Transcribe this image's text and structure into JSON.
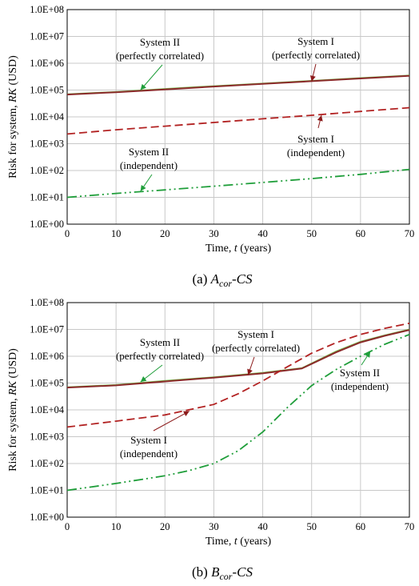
{
  "chart_data": [
    {
      "type": "line",
      "caption": {
        "prefix": "(a) ",
        "var": "A",
        "sub": "cor",
        "suffix": "-CS"
      },
      "xlabel": {
        "text": "Time, ",
        "var": "t",
        "unit": " (years)"
      },
      "ylabel": {
        "text": "Risk for system, ",
        "var": "RK",
        "unit": " (USD)"
      },
      "xlim": [
        0,
        70
      ],
      "ylim": [
        1,
        100000000
      ],
      "yscale": "log",
      "xticks": [
        "0",
        "10",
        "20",
        "30",
        "40",
        "50",
        "60",
        "70"
      ],
      "yticks": [
        "1.0E+00",
        "1.0E+01",
        "1.0E+02",
        "1.0E+03",
        "1.0E+04",
        "1.0E+05",
        "1.0E+06",
        "1.0E+07",
        "1.0E+08"
      ],
      "grid": true,
      "series": [
        {
          "key": "sysII_corr",
          "color": "#7cbf56",
          "style": "solid",
          "x": [
            0,
            10,
            20,
            30,
            40,
            50,
            60,
            70
          ],
          "y": [
            70000,
            85000,
            110000,
            140000,
            175000,
            220000,
            280000,
            350000
          ]
        },
        {
          "key": "sysI_corr",
          "color": "#8b2a2a",
          "style": "solid",
          "x": [
            0,
            10,
            20,
            30,
            40,
            50,
            60,
            70
          ],
          "y": [
            68000,
            83000,
            106000,
            135000,
            170000,
            215000,
            270000,
            340000
          ]
        },
        {
          "key": "sysI_ind",
          "color": "#b22222",
          "style": "dash",
          "x": [
            0,
            10,
            20,
            30,
            40,
            50,
            60,
            70
          ],
          "y": [
            2300,
            3300,
            4500,
            6200,
            8500,
            11500,
            16000,
            22000
          ]
        },
        {
          "key": "sysII_ind",
          "color": "#1f9e3a",
          "style": "dashdotdot",
          "x": [
            0,
            10,
            20,
            30,
            40,
            50,
            60,
            70
          ],
          "y": [
            10,
            14,
            19,
            26,
            36,
            50,
            72,
            110
          ]
        }
      ],
      "annotations": [
        {
          "lines": [
            "System II",
            "(perfectly correlated)"
          ],
          "color": "#1f9e3a",
          "arrow_to": [
            15,
            100000
          ]
        },
        {
          "lines": [
            "System I",
            "(perfectly correlated)"
          ],
          "color": "#8b1a1a",
          "arrow_to": [
            50,
            210000
          ]
        },
        {
          "lines": [
            "System I",
            "(independent)"
          ],
          "color": "#8b1a1a",
          "arrow_to": [
            52,
            11500
          ]
        },
        {
          "lines": [
            "System II",
            "(independent)"
          ],
          "color": "#1f9e3a",
          "arrow_to": [
            15,
            17
          ]
        }
      ]
    },
    {
      "type": "line",
      "caption": {
        "prefix": "(b) ",
        "var": "B",
        "sub": "cor",
        "suffix": "-CS"
      },
      "xlabel": {
        "text": "Time, ",
        "var": "t",
        "unit": " (years)"
      },
      "ylabel": {
        "text": "Risk for system, ",
        "var": "RK",
        "unit": " (USD)"
      },
      "xlim": [
        0,
        70
      ],
      "ylim": [
        1,
        100000000
      ],
      "yscale": "log",
      "xticks": [
        "0",
        "10",
        "20",
        "30",
        "40",
        "50",
        "60",
        "70"
      ],
      "yticks": [
        "1.0E+00",
        "1.0E+01",
        "1.0E+02",
        "1.0E+03",
        "1.0E+04",
        "1.0E+05",
        "1.0E+06",
        "1.0E+07",
        "1.0E+08"
      ],
      "grid": true,
      "series": [
        {
          "key": "sysII_corr",
          "color": "#7cbf56",
          "style": "solid",
          "x": [
            0,
            10,
            20,
            30,
            40,
            48,
            55,
            60,
            65,
            70
          ],
          "y": [
            70000,
            85000,
            120000,
            165000,
            240000,
            360000,
            1500000,
            3500000,
            6000000,
            10000000
          ]
        },
        {
          "key": "sysI_corr",
          "color": "#8b2a2a",
          "style": "solid",
          "x": [
            0,
            10,
            20,
            30,
            40,
            48,
            55,
            60,
            65,
            70
          ],
          "y": [
            68000,
            82000,
            115000,
            160000,
            230000,
            350000,
            1400000,
            3300000,
            5800000,
            9500000
          ]
        },
        {
          "key": "sysI_ind",
          "color": "#b22222",
          "style": "dash",
          "x": [
            0,
            10,
            20,
            30,
            35,
            40,
            45,
            50,
            55,
            60,
            65,
            70
          ],
          "y": [
            2300,
            3800,
            6500,
            16000,
            40000,
            120000,
            400000,
            1300000,
            3200000,
            6500000,
            11000000,
            17000000
          ]
        },
        {
          "key": "sysII_ind",
          "color": "#1f9e3a",
          "style": "dashdotdot",
          "x": [
            0,
            10,
            20,
            25,
            30,
            35,
            40,
            45,
            50,
            55,
            60,
            65,
            70
          ],
          "y": [
            10,
            18,
            35,
            55,
            100,
            300,
            1500,
            12000,
            80000,
            320000,
            1000000,
            2800000,
            6500000
          ]
        }
      ],
      "annotations": [
        {
          "lines": [
            "System II",
            "(perfectly correlated)"
          ],
          "color": "#1f9e3a",
          "arrow_to": [
            15,
            110000
          ]
        },
        {
          "lines": [
            "System I",
            "(perfectly correlated)"
          ],
          "color": "#8b1a1a",
          "arrow_to": [
            37,
            200000
          ]
        },
        {
          "lines": [
            "System I",
            "(independent)"
          ],
          "color": "#8b1a1a",
          "arrow_to": [
            25,
            9000
          ]
        },
        {
          "lines": [
            "System II",
            "(independent)"
          ],
          "color": "#1f9e3a",
          "arrow_to": [
            62,
            1500000
          ]
        }
      ]
    }
  ]
}
